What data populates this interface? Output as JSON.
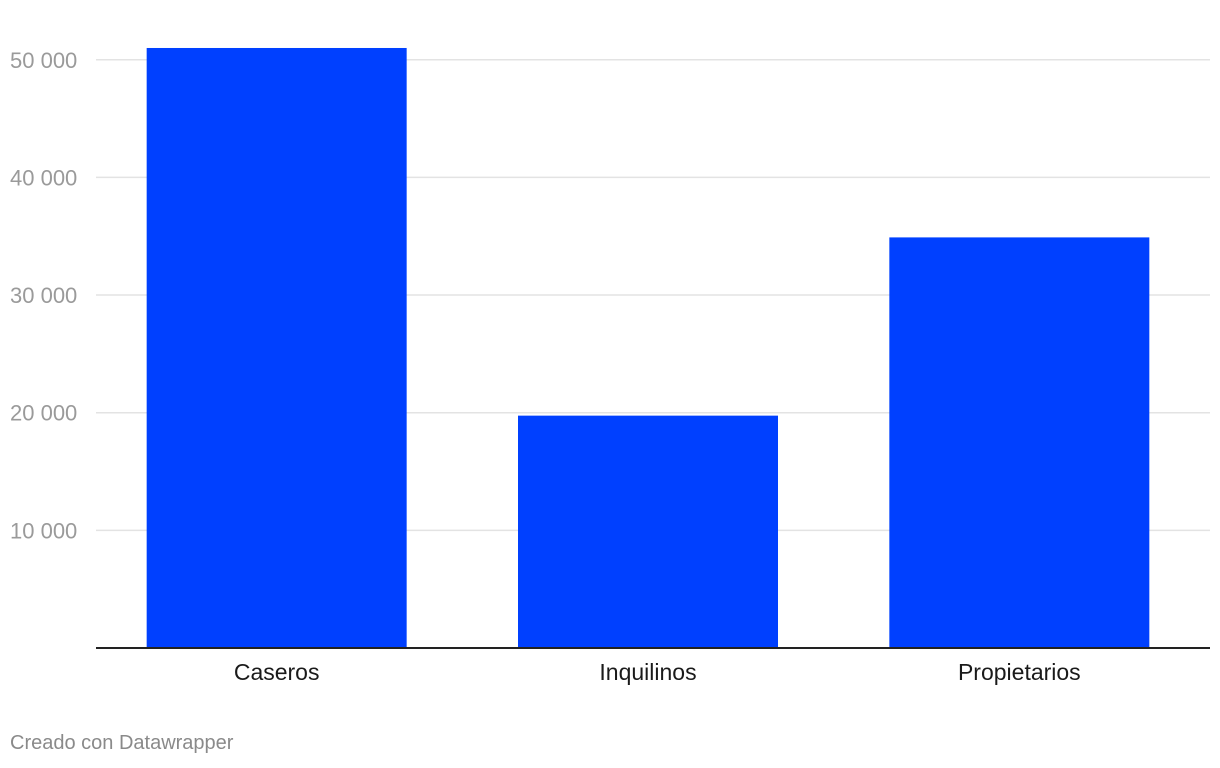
{
  "chart_data": {
    "type": "bar",
    "categories": [
      "Caseros",
      "Inquilinos",
      "Propietarios"
    ],
    "values": [
      51000,
      19750,
      34900
    ],
    "yticks": [
      10000,
      20000,
      30000,
      40000,
      50000
    ],
    "ytick_labels": [
      "10 000",
      "20 000",
      "30 000",
      "40 000",
      "50 000"
    ],
    "ylim": [
      0,
      50000
    ],
    "bar_color": "#0040ff",
    "grid": true,
    "title": "",
    "xlabel": "",
    "ylabel": ""
  },
  "footer": {
    "credit": "Creado con Datawrapper"
  }
}
